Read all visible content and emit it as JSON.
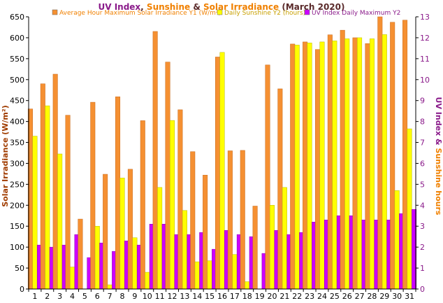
{
  "chart_data": {
    "type": "bar",
    "title": {
      "part1": "UV Index",
      "sep1": ", ",
      "part2": "Sunshine",
      "sep2": " & ",
      "part3": "Solar Irradiance",
      "part4": " (March 2020)"
    },
    "ylabel_left": "Solar Irradiance (W/m²)",
    "ylabel_right": {
      "part1": "UV Index",
      "sep": " & ",
      "part2": "Sunshine hours"
    },
    "categories": [
      "1",
      "2",
      "3",
      "4",
      "5",
      "6",
      "7",
      "8",
      "9",
      "10",
      "11",
      "12",
      "13",
      "14",
      "15",
      "16",
      "17",
      "18",
      "19",
      "20",
      "21",
      "22",
      "23",
      "24",
      "25",
      "26",
      "27",
      "28",
      "29",
      "30",
      "31"
    ],
    "y1_range": [
      0,
      650
    ],
    "y1_ticks": [
      "0",
      "50",
      "100",
      "150",
      "200",
      "250",
      "300",
      "350",
      "400",
      "450",
      "500",
      "550",
      "600",
      "650"
    ],
    "y2_range": [
      0,
      13
    ],
    "y2_ticks": [
      "0",
      "1",
      "2",
      "3",
      "4",
      "5",
      "6",
      "7",
      "8",
      "9",
      "10",
      "11",
      "12",
      "13"
    ],
    "grid": false,
    "legend_position": "top",
    "series": [
      {
        "name": "Average Hour Maximum Solar Irradiance Y1 (W/m²)",
        "axis": "y1",
        "color": "#f59032",
        "values": [
          430,
          490,
          513,
          415,
          167,
          446,
          274,
          459,
          286,
          402,
          615,
          542,
          428,
          328,
          272,
          554,
          330,
          331,
          198,
          535,
          478,
          585,
          590,
          572,
          607,
          618,
          600,
          586,
          650,
          637,
          642
        ]
      },
      {
        "name": "Daily Sunshine Y2 (hours)",
        "axis": "y2",
        "color": "#ffff00",
        "values": [
          7.3,
          8.75,
          6.45,
          1.05,
          0,
          3.0,
          0.2,
          5.3,
          2.45,
          0.8,
          4.85,
          8.05,
          3.75,
          1.3,
          1.35,
          11.3,
          1.65,
          0.35,
          0,
          4.0,
          4.85,
          11.65,
          11.75,
          11.8,
          11.85,
          11.95,
          12.0,
          11.95,
          12.15,
          4.7,
          7.65
        ]
      },
      {
        "name": "UV Index Daily Maximum Y2",
        "axis": "y2",
        "color": "#cc00ff",
        "values": [
          2.1,
          2.0,
          2.1,
          2.6,
          1.5,
          2.2,
          1.8,
          2.3,
          2.1,
          3.1,
          3.1,
          2.6,
          2.6,
          2.7,
          1.9,
          2.8,
          2.6,
          2.5,
          1.7,
          2.8,
          2.6,
          2.7,
          3.2,
          3.3,
          3.5,
          3.5,
          3.3,
          3.3,
          3.3,
          3.6,
          3.8
        ]
      }
    ]
  },
  "colors": {
    "title_uv": "#8a1a8a",
    "title_sunshine": "#f08000",
    "title_solar": "#f08000",
    "title_rest": "#5a2a2a",
    "axis_left_label": "#a03c00",
    "axis_right_uv": "#8a1a8a",
    "axis_right_sun": "#f08000",
    "legend_text_solar": "#f08000",
    "legend_text_sun": "#c8a000",
    "legend_text_uv": "#8a1a8a"
  }
}
